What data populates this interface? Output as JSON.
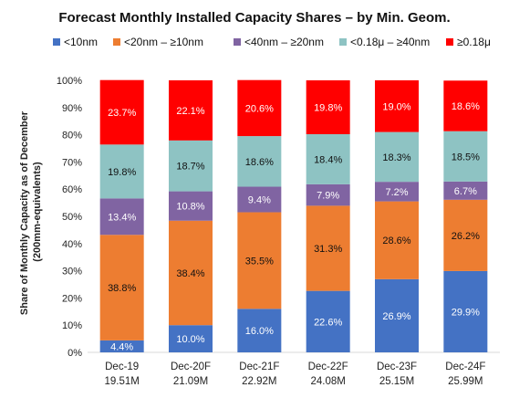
{
  "chart_data": {
    "type": "bar",
    "stacked": true,
    "title": "Forecast Monthly Installed Capacity Shares – by Min. Geom.",
    "ylabel": "Share of Monthly Capacity as of December (200mm-equivalents)",
    "ylabel_lines": [
      "Share of Monthly Capacity as of December",
      "(200mm-equivalents)"
    ],
    "ylim": [
      0,
      100
    ],
    "yticks": [
      "0%",
      "10%",
      "20%",
      "30%",
      "40%",
      "50%",
      "60%",
      "70%",
      "80%",
      "90%",
      "100%"
    ],
    "legend_position": "top",
    "grid": false,
    "categories": [
      "Dec-19",
      "Dec-20F",
      "Dec-21F",
      "Dec-22F",
      "Dec-23F",
      "Dec-24F"
    ],
    "category_totals": [
      "19.51M",
      "21.09M",
      "22.92M",
      "24.08M",
      "25.15M",
      "25.99M"
    ],
    "series": [
      {
        "name": "<10nm",
        "color": "#4472C4",
        "label_color": "#ffffff",
        "values": [
          4.4,
          10.0,
          16.0,
          22.6,
          26.9,
          29.9
        ],
        "labels": [
          "4.4%",
          "10.0%",
          "16.0%",
          "22.6%",
          "26.9%",
          "29.9%"
        ]
      },
      {
        "name": "<20nm – ≥10nm",
        "color": "#ED7D31",
        "label_color": "#111111",
        "values": [
          38.8,
          38.4,
          35.5,
          31.3,
          28.6,
          26.2
        ],
        "labels": [
          "38.8%",
          "38.4%",
          "35.5%",
          "31.3%",
          "28.6%",
          "26.2%"
        ]
      },
      {
        "name": "<40nm – ≥20nm",
        "color": "#8064A2",
        "label_color": "#ffffff",
        "values": [
          13.4,
          10.8,
          9.4,
          7.9,
          7.2,
          6.7
        ],
        "labels": [
          "13.4%",
          "10.8%",
          "9.4%",
          "7.9%",
          "7.2%",
          "6.7%"
        ]
      },
      {
        "name": "<0.18μ – ≥40nm",
        "color": "#8EC3C3",
        "label_color": "#111111",
        "values": [
          19.8,
          18.7,
          18.6,
          18.4,
          18.3,
          18.5
        ],
        "labels": [
          "19.8%",
          "18.7%",
          "18.6%",
          "18.4%",
          "18.3%",
          "18.5%"
        ]
      },
      {
        "name": "≥0.18μ",
        "color": "#FF0000",
        "label_color": "#ffffff",
        "values": [
          23.7,
          22.1,
          20.6,
          19.8,
          19.0,
          18.6
        ],
        "labels": [
          "23.7%",
          "22.1%",
          "20.6%",
          "19.8%",
          "19.0%",
          "18.6%"
        ]
      }
    ]
  }
}
